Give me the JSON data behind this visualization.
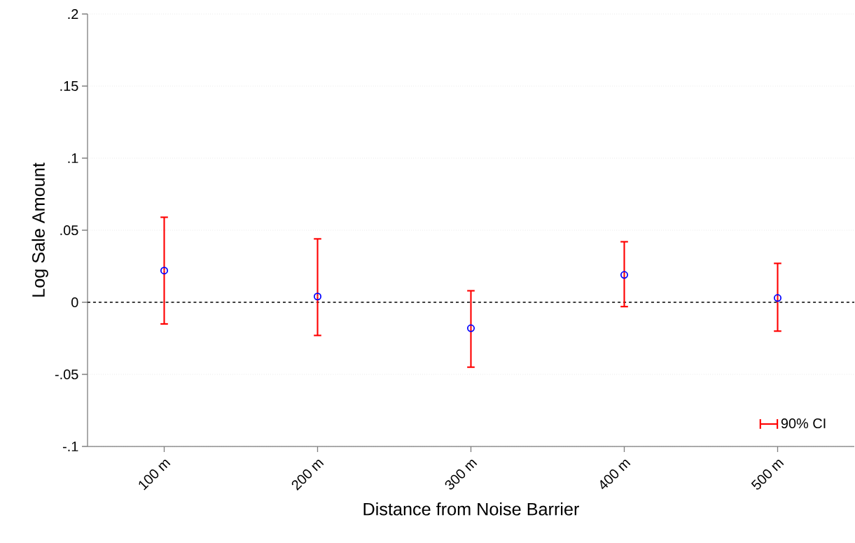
{
  "chart_data": {
    "type": "scatter",
    "xlabel": "Distance from Noise Barrier",
    "ylabel": "Log Sale Amount",
    "categories": [
      "100 m",
      "200 m",
      "300 m",
      "400 m",
      "500 m"
    ],
    "series": [
      {
        "name": "90% CI",
        "color": "#0000ff",
        "values": [
          0.022,
          0.004,
          -0.018,
          0.019,
          0.003
        ],
        "marker": "circle",
        "errors": [
          [
            -0.015,
            0.059
          ],
          [
            -0.023,
            0.044
          ],
          [
            -0.045,
            0.008
          ],
          [
            -0.003,
            0.042
          ],
          [
            -0.02,
            0.027
          ]
        ]
      }
    ],
    "ylim": [
      -0.1,
      0.2
    ],
    "yticks": [
      {
        "value": -0.1,
        "label": "-.1"
      },
      {
        "value": -0.05,
        "label": "-.05"
      },
      {
        "value": 0,
        "label": "0"
      },
      {
        "value": 0.05,
        "label": ".05"
      },
      {
        "value": 0.1,
        "label": ".1"
      },
      {
        "value": 0.15,
        "label": ".15"
      },
      {
        "value": 0.2,
        "label": ".2"
      }
    ],
    "grid": "y",
    "legend": "bottom right",
    "ref_lines": [
      {
        "axis": "y",
        "value": 0,
        "color": "#000000",
        "line_style": "dashed"
      }
    ]
  }
}
